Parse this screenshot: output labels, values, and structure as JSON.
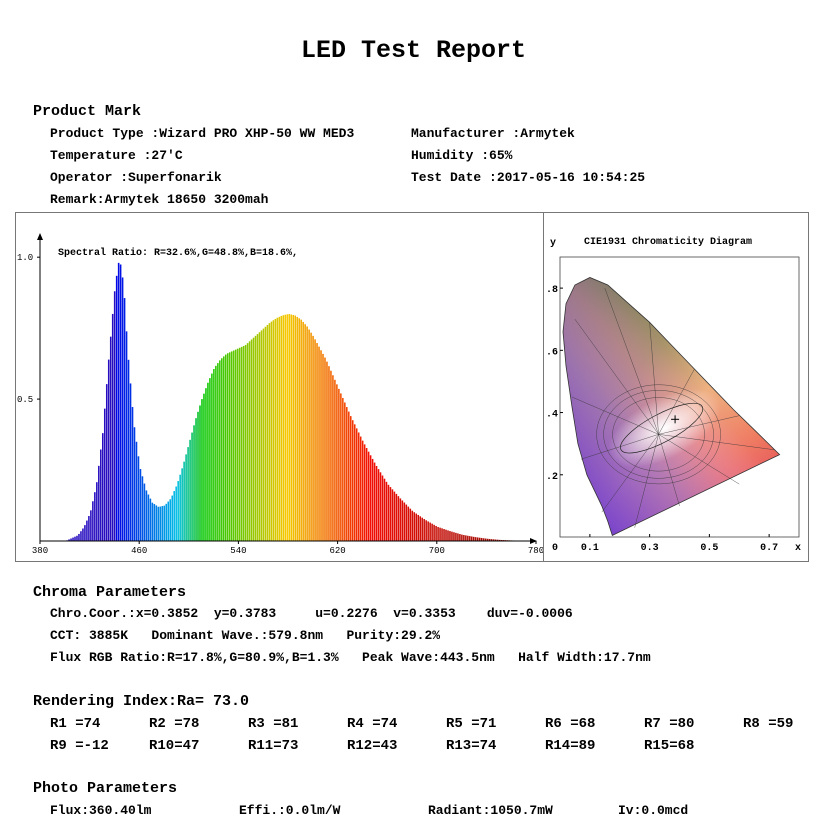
{
  "report": {
    "title": "LED Test Report"
  },
  "product": {
    "heading": "Product Mark",
    "type_label": "Product Type :",
    "type_value": "Wizard PRO XHP-50 WW MED3",
    "manufacturer_label": "Manufacturer :",
    "manufacturer_value": "Armytek",
    "temperature_label": "Temperature :",
    "temperature_value": "27'C",
    "humidity_label": "Humidity :",
    "humidity_value": "65%",
    "operator_label": "Operator :",
    "operator_value": "Superfonarik",
    "test_date_label": "Test Date :",
    "test_date_value": "2017-05-16 10:54:25",
    "remark_label": "Remark:",
    "remark_value": "Armytek 18650 3200mah"
  },
  "chart_data": [
    {
      "type": "area",
      "title": "Spectral Ratio:  R=32.6%,G=48.8%,B=18.6%,",
      "x_ticks": [
        380,
        460,
        540,
        620,
        700,
        780
      ],
      "y_ticks": [
        "1.0",
        "0.5"
      ],
      "xlim": [
        380,
        780
      ],
      "ylim": [
        0,
        1.05
      ],
      "x": [
        400,
        405,
        410,
        415,
        420,
        425,
        430,
        435,
        440,
        443.5,
        447,
        450,
        455,
        460,
        465,
        470,
        475,
        480,
        485,
        490,
        495,
        500,
        505,
        510,
        515,
        520,
        525,
        530,
        535,
        540,
        545,
        550,
        555,
        560,
        565,
        570,
        575,
        580,
        585,
        590,
        595,
        600,
        605,
        610,
        615,
        620,
        630,
        640,
        650,
        660,
        670,
        680,
        690,
        700,
        710,
        720,
        730,
        740,
        750,
        760,
        770,
        780
      ],
      "y": [
        0.0,
        0.01,
        0.02,
        0.05,
        0.1,
        0.2,
        0.38,
        0.65,
        0.9,
        1.0,
        0.9,
        0.68,
        0.42,
        0.26,
        0.18,
        0.135,
        0.12,
        0.125,
        0.15,
        0.2,
        0.27,
        0.35,
        0.43,
        0.5,
        0.56,
        0.61,
        0.64,
        0.66,
        0.67,
        0.68,
        0.69,
        0.71,
        0.73,
        0.75,
        0.77,
        0.785,
        0.795,
        0.8,
        0.795,
        0.78,
        0.755,
        0.72,
        0.68,
        0.64,
        0.59,
        0.54,
        0.44,
        0.35,
        0.27,
        0.2,
        0.15,
        0.105,
        0.075,
        0.05,
        0.035,
        0.022,
        0.014,
        0.008,
        0.004,
        0.002,
        0.001,
        0.0
      ]
    },
    {
      "type": "scatter",
      "title": "CIE1931 Chromaticity Diagram",
      "ylabel": "y",
      "xlabel": "x",
      "x_ticks": [
        "0",
        "0.1",
        "0.3",
        "0.5",
        "0.7"
      ],
      "y_ticks": [
        ".8",
        ".6",
        ".4",
        ".2"
      ],
      "x_tick_values": [
        0,
        0.1,
        0.3,
        0.5,
        0.7
      ],
      "y_tick_values": [
        0.8,
        0.6,
        0.4,
        0.2
      ],
      "xlim": [
        0,
        0.8
      ],
      "ylim": [
        0,
        0.9
      ],
      "point": {
        "x": 0.3852,
        "y": 0.3783
      }
    }
  ],
  "chroma": {
    "heading": "Chroma Parameters",
    "line1": "Chro.Coor.:x=0.3852  y=0.3783     u=0.2276  v=0.3353    duv=-0.0006",
    "line2": "CCT: 3885K   Dominant Wave.:579.8nm   Purity:29.2%",
    "line3": "Flux RGB Ratio:R=17.8%,G=80.9%,B=1.3%   Peak Wave:443.5nm   Half Width:17.7nm"
  },
  "rendering": {
    "heading": "Rendering Index:Ra= 73.0",
    "row1": [
      "R1 =74",
      "R2 =78",
      "R3 =81",
      "R4 =74",
      "R5 =71",
      "R6 =68",
      "R7 =80",
      "R8 =59"
    ],
    "row2": [
      "R9 =-12",
      "R10=47",
      "R11=73",
      "R12=43",
      "R13=74",
      "R14=89",
      "R15=68"
    ]
  },
  "photo": {
    "heading": "Photo Parameters",
    "flux": "Flux:360.40lm",
    "effi": "Effi.:0.0lm/W",
    "radiant": "Radiant:1050.7mW",
    "iv": "Iv:0.0mcd"
  }
}
